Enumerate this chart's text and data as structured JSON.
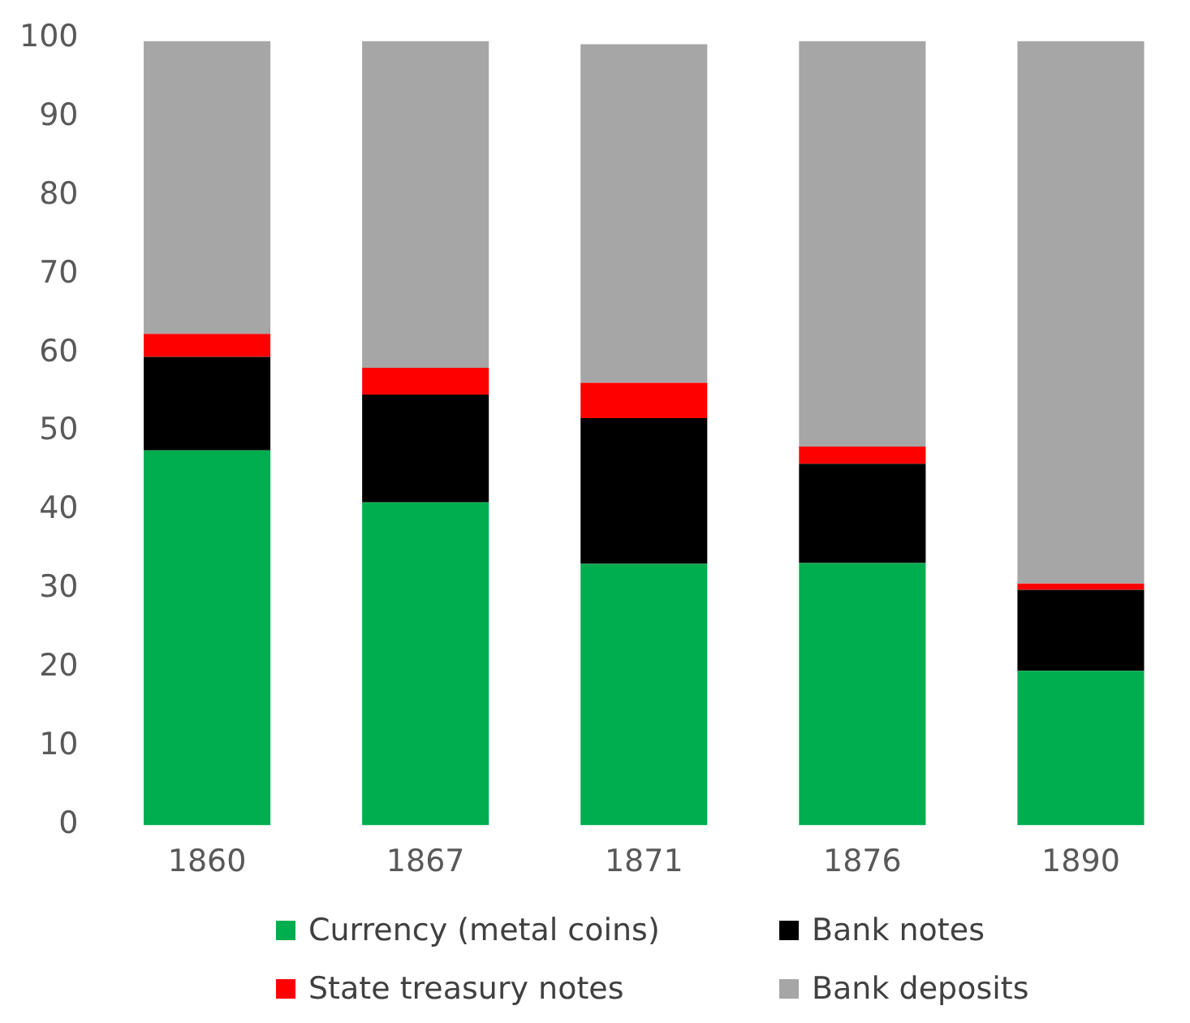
{
  "chart_data": {
    "type": "bar",
    "stacked": true,
    "categories": [
      "1860",
      "1867",
      "1871",
      "1876",
      "1890"
    ],
    "series": [
      {
        "name": "Currency (metal coins)",
        "color": "#00ad4f",
        "values": [
          47.6,
          41.0,
          33.2,
          33.3,
          19.6
        ]
      },
      {
        "name": "Bank notes",
        "color": "#000000",
        "values": [
          11.9,
          13.7,
          18.5,
          12.6,
          10.3
        ]
      },
      {
        "name": "State treasury notes",
        "color": "#ff0000",
        "values": [
          2.9,
          3.4,
          4.5,
          2.2,
          0.8
        ]
      },
      {
        "name": "Bank deposits",
        "color": "#a6a6a6",
        "values": [
          37.2,
          41.5,
          43.0,
          51.5,
          68.9
        ]
      }
    ],
    "ylim": [
      0,
      100
    ],
    "yticks": [
      0,
      10,
      20,
      30,
      40,
      50,
      60,
      70,
      80,
      90,
      100
    ],
    "grid": false,
    "legend": "bottom"
  }
}
